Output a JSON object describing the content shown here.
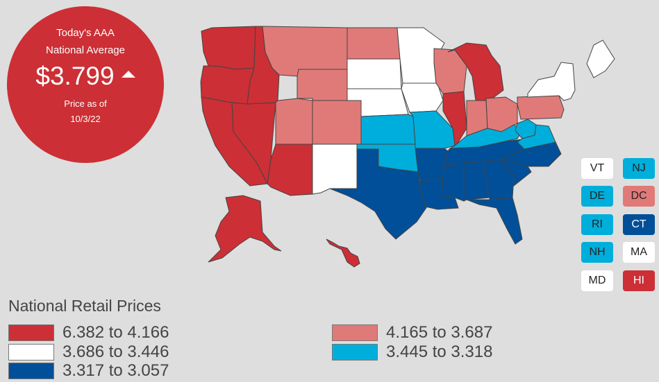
{
  "badge": {
    "title_line1": "Today's AAA",
    "title_line2": "National Average",
    "price": "$3.799",
    "trend_icon": "up-triangle-icon",
    "asof_line1": "Price as of",
    "asof_line2": "10/3/22"
  },
  "colors": {
    "tier1": "#cc2f35",
    "tier2": "#e07a78",
    "tier3": "#ffffff",
    "tier4": "#00aedb",
    "tier5": "#004f98"
  },
  "small_states": [
    {
      "abbr": "VT",
      "tier": "tier3"
    },
    {
      "abbr": "NJ",
      "tier": "tier4"
    },
    {
      "abbr": "DE",
      "tier": "tier4"
    },
    {
      "abbr": "DC",
      "tier": "tier2"
    },
    {
      "abbr": "RI",
      "tier": "tier4"
    },
    {
      "abbr": "CT",
      "tier": "tier5"
    },
    {
      "abbr": "NH",
      "tier": "tier4"
    },
    {
      "abbr": "MA",
      "tier": "tier3"
    },
    {
      "abbr": "MD",
      "tier": "tier3"
    },
    {
      "abbr": "HI",
      "tier": "tier1"
    }
  ],
  "legend": {
    "title": "National Retail Prices",
    "items": [
      {
        "label": "6.382 to 4.166",
        "tier": "tier1"
      },
      {
        "label": "3.686 to 3.446",
        "tier": "tier3"
      },
      {
        "label": "3.317 to 3.057",
        "tier": "tier5"
      },
      {
        "label": "4.165 to 3.687",
        "tier": "tier2"
      },
      {
        "label": "3.445 to 3.318",
        "tier": "tier4"
      }
    ]
  },
  "states": {
    "WA": "tier1",
    "OR": "tier1",
    "CA": "tier1",
    "NV": "tier1",
    "ID": "tier1",
    "AZ": "tier1",
    "IL": "tier1",
    "MI": "tier1",
    "AK": "tier1",
    "HI": "tier1",
    "MT": "tier2",
    "WY": "tier2",
    "UT": "tier2",
    "CO": "tier2",
    "ND": "tier2",
    "WI": "tier2",
    "IN": "tier2",
    "OH": "tier2",
    "PA": "tier2",
    "NM": "tier3",
    "SD": "tier3",
    "NE": "tier3",
    "MN": "tier3",
    "IA": "tier3",
    "NY": "tier3",
    "ME": "tier3",
    "KS": "tier4",
    "OK": "tier4",
    "MO": "tier4",
    "KY": "tier4",
    "WV": "tier4",
    "VA": "tier4",
    "TX": "tier5",
    "AR": "tier5",
    "LA": "tier5",
    "MS": "tier5",
    "AL": "tier5",
    "GA": "tier5",
    "FL": "tier5",
    "TN": "tier5",
    "NC": "tier5",
    "SC": "tier5"
  }
}
